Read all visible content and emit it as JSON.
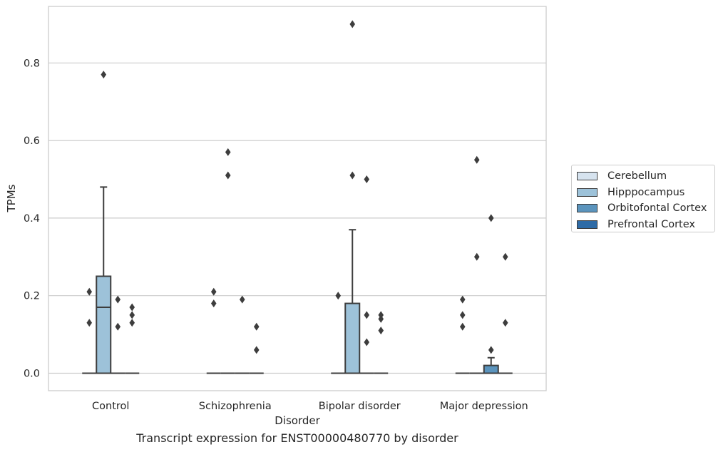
{
  "chart_data": {
    "type": "box",
    "caption": "Transcript expression for ENST00000480770 by disorder",
    "xlabel": "Disorder",
    "ylabel": "TPMs",
    "ylim": [
      -0.043,
      0.943
    ],
    "yticks": [
      "0.0",
      "0.2",
      "0.4",
      "0.6",
      "0.8"
    ],
    "ytick_values": [
      0.0,
      0.2,
      0.4,
      0.6,
      0.8
    ],
    "grid": "horizontal",
    "legend_position": "right",
    "categories": [
      "Control",
      "Schizophrenia",
      "Bipolar disorder",
      "Major depression"
    ],
    "series": [
      {
        "name": "Cerebellum",
        "color": "#d6e3ef",
        "boxes": [
          {
            "q1": 0,
            "median": 0,
            "q3": 0,
            "whislo": 0,
            "whishi": 0,
            "fliers": [
              0.21,
              0.13
            ]
          },
          {
            "q1": 0,
            "median": 0,
            "q3": 0,
            "whislo": 0,
            "whishi": 0,
            "fliers": [
              0.21,
              0.18
            ]
          },
          {
            "q1": 0,
            "median": 0,
            "q3": 0,
            "whislo": 0,
            "whishi": 0,
            "fliers": [
              0.2
            ]
          },
          {
            "q1": 0,
            "median": 0,
            "q3": 0,
            "whislo": 0,
            "whishi": 0,
            "fliers": [
              0.19,
              0.15,
              0.12
            ]
          }
        ]
      },
      {
        "name": "Hipppocampus",
        "color": "#9dc2d9",
        "boxes": [
          {
            "q1": 0,
            "median": 0.17,
            "q3": 0.25,
            "whislo": 0,
            "whishi": 0.48,
            "fliers": [
              0.77
            ]
          },
          {
            "q1": 0,
            "median": 0,
            "q3": 0,
            "whislo": 0,
            "whishi": 0,
            "fliers": [
              0.57,
              0.51
            ]
          },
          {
            "q1": 0,
            "median": 0,
            "q3": 0.18,
            "whislo": 0,
            "whishi": 0.37,
            "fliers": [
              0.9,
              0.51
            ]
          },
          {
            "q1": 0,
            "median": 0,
            "q3": 0,
            "whislo": 0,
            "whishi": 0,
            "fliers": [
              0.55,
              0.3
            ]
          }
        ]
      },
      {
        "name": "Orbitofontal Cortex",
        "color": "#5b94bd",
        "boxes": [
          {
            "q1": 0,
            "median": 0,
            "q3": 0,
            "whislo": 0,
            "whishi": 0,
            "fliers": [
              0.19,
              0.12
            ]
          },
          {
            "q1": 0,
            "median": 0,
            "q3": 0,
            "whislo": 0,
            "whishi": 0,
            "fliers": [
              0.19
            ]
          },
          {
            "q1": 0,
            "median": 0,
            "q3": 0,
            "whislo": 0,
            "whishi": 0,
            "fliers": [
              0.5,
              0.15,
              0.08
            ]
          },
          {
            "q1": 0,
            "median": 0,
            "q3": 0.02,
            "whislo": 0,
            "whishi": 0.04,
            "fliers": [
              0.4,
              0.06
            ]
          }
        ]
      },
      {
        "name": "Prefrontal Cortex",
        "color": "#2e6ba6",
        "boxes": [
          {
            "q1": 0,
            "median": 0,
            "q3": 0,
            "whislo": 0,
            "whishi": 0,
            "fliers": [
              0.17,
              0.15,
              0.13
            ]
          },
          {
            "q1": 0,
            "median": 0,
            "q3": 0,
            "whislo": 0,
            "whishi": 0,
            "fliers": [
              0.12,
              0.06
            ]
          },
          {
            "q1": 0,
            "median": 0,
            "q3": 0,
            "whislo": 0,
            "whishi": 0,
            "fliers": [
              0.15,
              0.14,
              0.11
            ]
          },
          {
            "q1": 0,
            "median": 0,
            "q3": 0,
            "whislo": 0,
            "whishi": 0,
            "fliers": [
              0.3,
              0.13
            ]
          }
        ]
      }
    ]
  }
}
